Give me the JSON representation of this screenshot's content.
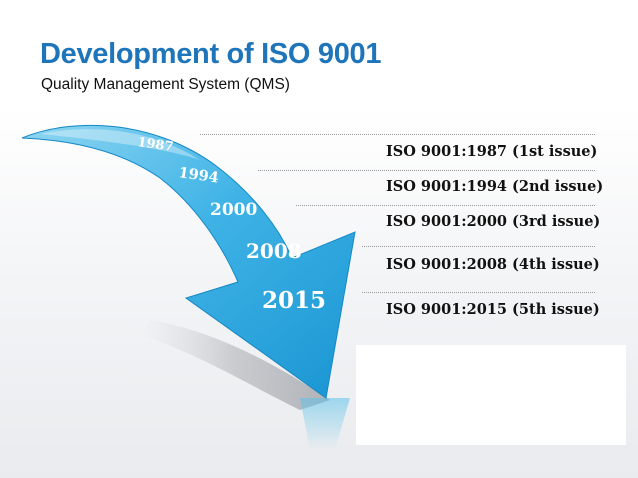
{
  "header": {
    "title": "Development of ISO 9001",
    "subtitle": "Quality Management System (QMS)"
  },
  "timeline": {
    "years": [
      "1987",
      "1994",
      "2000",
      "2008",
      "2015"
    ],
    "issues": [
      "ISO 9001:1987 (1st issue)",
      "ISO 9001:1994 (2nd issue)",
      "ISO 9001:2000 (3rd issue)",
      "ISO 9001:2008 (4th issue)",
      "ISO 9001:2015 (5th issue)"
    ]
  },
  "colors": {
    "title": "#1f75ba",
    "arrow_light": "#7fd0f0",
    "arrow_dark": "#1b9bd6"
  }
}
